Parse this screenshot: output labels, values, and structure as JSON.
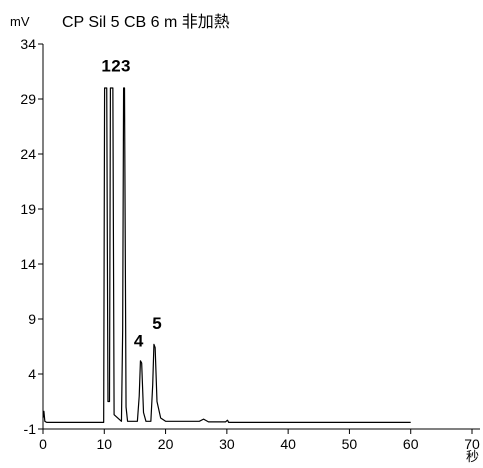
{
  "chart_data": {
    "type": "line",
    "title": "CP Sil 5 CB 6 m 非加熱",
    "ylabel": "mV",
    "xlabel": "秒",
    "xlim": [
      0,
      70
    ],
    "ylim": [
      -1,
      34
    ],
    "xticks": [
      0,
      10,
      20,
      30,
      40,
      50,
      60,
      70
    ],
    "yticks": [
      -1,
      4,
      9,
      14,
      19,
      24,
      29,
      34
    ],
    "grid": false,
    "series": [
      {
        "points": [
          [
            0,
            0
          ],
          [
            0.15,
            0.6
          ],
          [
            0.3,
            -0.3
          ],
          [
            0.6,
            -0.4
          ],
          [
            5,
            -0.4
          ],
          [
            9.9,
            -0.4
          ],
          [
            10.05,
            30
          ],
          [
            10.4,
            30
          ],
          [
            10.6,
            1.5
          ],
          [
            10.85,
            1.5
          ],
          [
            11.0,
            30
          ],
          [
            11.4,
            30
          ],
          [
            11.6,
            0.3
          ],
          [
            12.8,
            -0.3
          ],
          [
            13.0,
            8
          ],
          [
            13.15,
            30
          ],
          [
            13.3,
            30
          ],
          [
            13.55,
            1
          ],
          [
            13.8,
            -0.3
          ],
          [
            15.4,
            -0.3
          ],
          [
            15.7,
            2
          ],
          [
            15.9,
            5.2
          ],
          [
            16.1,
            5
          ],
          [
            16.4,
            0.5
          ],
          [
            16.8,
            -0.3
          ],
          [
            17.6,
            -0.3
          ],
          [
            17.9,
            3
          ],
          [
            18.1,
            6.7
          ],
          [
            18.3,
            6.4
          ],
          [
            18.6,
            1.5
          ],
          [
            19.2,
            0
          ],
          [
            20,
            -0.3
          ],
          [
            25.5,
            -0.3
          ],
          [
            26.2,
            -0.1
          ],
          [
            27,
            -0.35
          ],
          [
            29.8,
            -0.35
          ],
          [
            30.1,
            -0.2
          ],
          [
            30.3,
            -0.4
          ],
          [
            40,
            -0.4
          ],
          [
            50,
            -0.4
          ],
          [
            60,
            -0.4
          ]
        ]
      }
    ],
    "annotations": [
      {
        "text": "1",
        "x": 10.3,
        "y": 31.5
      },
      {
        "text": "2",
        "x": 11.9,
        "y": 31.5
      },
      {
        "text": "3",
        "x": 13.5,
        "y": 31.5
      },
      {
        "text": "4",
        "x": 15.6,
        "y": 6.5
      },
      {
        "text": "5",
        "x": 18.6,
        "y": 8.1
      }
    ]
  }
}
